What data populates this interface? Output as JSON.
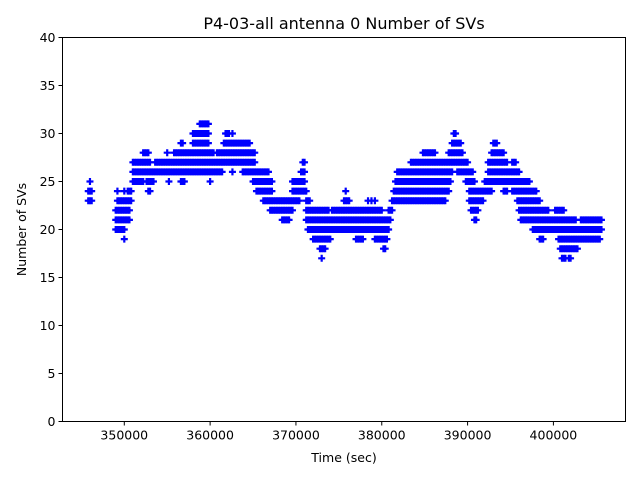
{
  "chart_data": {
    "type": "scatter",
    "title": "P4-03-all antenna 0 Number of SVs",
    "xlabel": "Time (sec)",
    "ylabel": "Number of SVs",
    "xlim": [
      342800,
      408400
    ],
    "ylim": [
      0,
      40
    ],
    "xticks": [
      350000,
      360000,
      370000,
      380000,
      390000,
      400000
    ],
    "xtick_labels": [
      "350000",
      "360000",
      "370000",
      "380000",
      "390000",
      "400000"
    ],
    "yticks": [
      0,
      5,
      10,
      15,
      20,
      25,
      30,
      35,
      40
    ],
    "ytick_labels": [
      "0",
      "5",
      "10",
      "15",
      "20",
      "25",
      "30",
      "35",
      "40"
    ],
    "marker": "plus",
    "color": "#0000ff",
    "grid": false,
    "series": [
      {
        "x": [
          345800,
          346000,
          346200,
          349000,
          349200,
          349400,
          349600,
          349800,
          350000,
          350200,
          350400,
          350600,
          350800,
          351000,
          351200,
          351400,
          351600,
          351800,
          352000,
          352200,
          352400,
          352600,
          352800,
          353000,
          353200,
          353400,
          353600,
          353800,
          354000,
          354200,
          354400,
          354600,
          354800,
          355000,
          355200,
          355400,
          355600,
          355800,
          356000,
          356200,
          356400,
          356600,
          356800,
          357000,
          357200,
          357400,
          357600,
          357800,
          358000,
          358200,
          358400,
          358600,
          358800,
          359000,
          359200,
          359400,
          359600,
          359800,
          360000,
          360200,
          360400,
          360600,
          360800,
          361000,
          361200,
          361400,
          361600,
          361800,
          362000,
          362200,
          362400,
          362600,
          362800,
          363000,
          363200,
          363400,
          363600,
          363800,
          364000,
          364200,
          364400,
          364600,
          364800,
          365000,
          365200,
          365400,
          365600,
          365800,
          366000,
          366200,
          366400,
          366600,
          366800,
          367000,
          367200,
          367400,
          367600,
          367800,
          368000,
          368200,
          368400,
          368600,
          368800,
          369000,
          369200,
          369400,
          369600,
          369800,
          370000,
          370200,
          370400,
          370600,
          370800,
          371000,
          371200,
          371400,
          371600,
          371800,
          372000,
          372200,
          372400,
          372600,
          372800,
          373000,
          373200,
          373400,
          373600,
          373800,
          374000,
          374200,
          374400,
          374600,
          374800,
          375000,
          375200,
          375400,
          375600,
          375800,
          376000,
          376200,
          376400,
          376600,
          376800,
          377000,
          377200,
          377400,
          377600,
          377800,
          378000,
          378200,
          378400,
          378600,
          378800,
          379000,
          379200,
          379400,
          379600,
          379800,
          380000,
          380200,
          380400,
          380600,
          380800,
          381000,
          381200,
          381400,
          381600,
          381800,
          382000,
          382200,
          382400,
          382600,
          382800,
          383000,
          383200,
          383400,
          383600,
          383800,
          384000,
          384200,
          384400,
          384600,
          384800,
          385000,
          385200,
          385400,
          385600,
          385800,
          386000,
          386200,
          386400,
          386600,
          386800,
          387000,
          387200,
          387400,
          387600,
          387800,
          388000,
          388200,
          388400,
          388600,
          388800,
          389000,
          389200,
          389400,
          389600,
          389800,
          390000,
          390200,
          390400,
          390600,
          390800,
          391000,
          391200,
          391400,
          391600,
          391800,
          392000,
          392200,
          392400,
          392600,
          392800,
          393000,
          393200,
          393400,
          393600,
          393800,
          394000,
          394200,
          394400,
          394600,
          394800,
          395000,
          395200,
          395400,
          395600,
          395800,
          396000,
          396200,
          396400,
          396600,
          396800,
          397000,
          397200,
          397400,
          397600,
          397800,
          398000,
          398200,
          398400,
          398600,
          398800,
          399000,
          399200,
          399400,
          399600,
          399800,
          400000,
          400200,
          400400,
          400600,
          400800,
          401000,
          401200,
          401400,
          401600,
          401800,
          402000,
          402200,
          402400,
          402600,
          402800,
          403000,
          403200,
          403400,
          403600,
          403800,
          404000,
          404200,
          404400,
          404600,
          404800,
          405000,
          405200,
          405400,
          405600
        ],
        "y_min": [
          23,
          23,
          23,
          20,
          20,
          20,
          20,
          20,
          19,
          21,
          21,
          21,
          23,
          25,
          25,
          25,
          25,
          25,
          25,
          25,
          26,
          25,
          24,
          24,
          25,
          25,
          26,
          26,
          26,
          26,
          26,
          26,
          26,
          26,
          25,
          26,
          26,
          26,
          26,
          26,
          26,
          25,
          25,
          25,
          26,
          26,
          26,
          26,
          26,
          26,
          26,
          26,
          26,
          26,
          26,
          26,
          26,
          26,
          25,
          26,
          26,
          26,
          26,
          26,
          26,
          26,
          27,
          27,
          27,
          27,
          27,
          26,
          27,
          27,
          27,
          27,
          27,
          26,
          26,
          26,
          26,
          26,
          26,
          25,
          25,
          24,
          24,
          24,
          24,
          23,
          23,
          23,
          23,
          22,
          22,
          22,
          22,
          22,
          22,
          22,
          21,
          21,
          21,
          21,
          21,
          22,
          22,
          23,
          23,
          23,
          23,
          24,
          24,
          24,
          21,
          20,
          20,
          20,
          19,
          19,
          19,
          19,
          18,
          17,
          18,
          18,
          19,
          19,
          19,
          20,
          20,
          20,
          20,
          20,
          20,
          20,
          20,
          20,
          20,
          20,
          20,
          20,
          20,
          19,
          19,
          19,
          19,
          19,
          20,
          20,
          20,
          20,
          20,
          20,
          19,
          19,
          19,
          19,
          19,
          18,
          18,
          19,
          20,
          21,
          22,
          23,
          23,
          23,
          23,
          23,
          23,
          23,
          23,
          23,
          23,
          23,
          23,
          23,
          23,
          23,
          23,
          23,
          23,
          23,
          23,
          23,
          23,
          23,
          23,
          23,
          23,
          23,
          23,
          23,
          23,
          23,
          24,
          24,
          25,
          26,
          27,
          27,
          26,
          26,
          26,
          26,
          26,
          25,
          25,
          23,
          22,
          22,
          21,
          21,
          22,
          23,
          23,
          23,
          24,
          24,
          24,
          24,
          24,
          25,
          25,
          25,
          25,
          25,
          25,
          24,
          24,
          24,
          25,
          25,
          24,
          24,
          24,
          23,
          22,
          21,
          21,
          21,
          21,
          21,
          21,
          21,
          20,
          20,
          20,
          20,
          19,
          19,
          19,
          20,
          20,
          20,
          20,
          20,
          20,
          20,
          20,
          19,
          18,
          17,
          17,
          17,
          18,
          17,
          17,
          18,
          18,
          18,
          18,
          19,
          19,
          19,
          19,
          19,
          19,
          19,
          19,
          19,
          19,
          19,
          19,
          19,
          20
        ],
        "y_max": [
          24,
          25,
          24,
          22,
          24,
          23,
          23,
          23,
          24,
          23,
          24,
          24,
          24,
          27,
          27,
          27,
          27,
          27,
          27,
          28,
          28,
          28,
          28,
          27,
          26,
          26,
          27,
          27,
          27,
          27,
          27,
          27,
          27,
          28,
          27,
          27,
          27,
          28,
          28,
          28,
          28,
          29,
          29,
          28,
          28,
          28,
          28,
          28,
          30,
          30,
          30,
          30,
          31,
          31,
          31,
          31,
          31,
          31,
          28,
          28,
          28,
          27,
          28,
          28,
          28,
          28,
          29,
          30,
          30,
          30,
          29,
          30,
          29,
          29,
          29,
          29,
          29,
          29,
          29,
          29,
          29,
          29,
          28,
          28,
          28,
          26,
          26,
          26,
          26,
          26,
          26,
          26,
          26,
          25,
          25,
          23,
          23,
          23,
          23,
          23,
          23,
          23,
          23,
          23,
          23,
          23,
          25,
          25,
          25,
          25,
          25,
          26,
          27,
          27,
          24,
          23,
          23,
          22,
          22,
          22,
          22,
          22,
          22,
          22,
          22,
          22,
          22,
          22,
          21,
          22,
          22,
          22,
          22,
          22,
          22,
          22,
          23,
          24,
          23,
          23,
          22,
          22,
          22,
          22,
          22,
          22,
          22,
          22,
          22,
          22,
          23,
          22,
          23,
          22,
          23,
          22,
          22,
          22,
          22,
          21,
          21,
          21,
          22,
          22,
          23,
          24,
          25,
          26,
          26,
          26,
          26,
          26,
          26,
          26,
          26,
          27,
          27,
          27,
          27,
          27,
          27,
          27,
          28,
          28,
          28,
          28,
          28,
          28,
          28,
          28,
          27,
          27,
          27,
          27,
          27,
          27,
          27,
          28,
          28,
          29,
          30,
          30,
          29,
          29,
          29,
          28,
          27,
          27,
          27,
          26,
          26,
          26,
          25,
          24,
          24,
          24,
          24,
          24,
          25,
          25,
          27,
          27,
          28,
          29,
          29,
          29,
          28,
          28,
          28,
          28,
          27,
          27,
          26,
          26,
          27,
          27,
          27,
          26,
          26,
          25,
          25,
          25,
          25,
          25,
          25,
          24,
          24,
          24,
          24,
          23,
          23,
          22,
          22,
          22,
          22,
          22,
          21,
          21,
          21,
          22,
          22,
          22,
          22,
          22,
          22,
          21,
          21,
          21,
          21,
          21,
          21,
          21,
          20,
          20,
          21,
          21,
          21,
          21,
          21,
          21,
          21,
          21,
          21,
          21,
          21,
          21,
          21
        ]
      }
    ]
  }
}
